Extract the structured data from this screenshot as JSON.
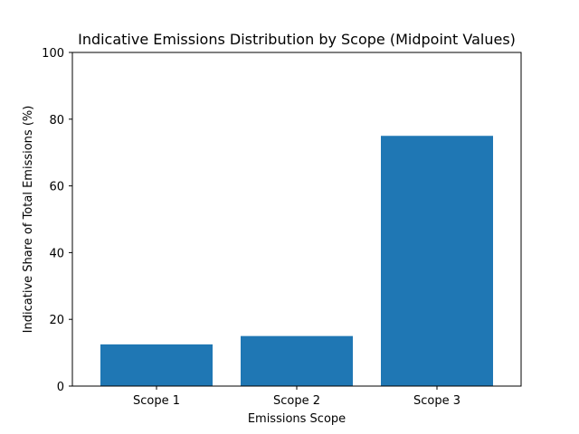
{
  "chart_data": {
    "type": "bar",
    "title": "Indicative Emissions Distribution by Scope (Midpoint Values)",
    "xlabel": "Emissions Scope",
    "ylabel": "Indicative Share of Total Emissions (%)",
    "categories": [
      "Scope 1",
      "Scope 2",
      "Scope 3"
    ],
    "values": [
      12.5,
      15,
      75
    ],
    "ylim": [
      0,
      100
    ],
    "yticks": [
      "0",
      "20",
      "40",
      "60",
      "80",
      "100"
    ],
    "bar_color": "#1f77b4",
    "grid": false,
    "legend": "none"
  }
}
